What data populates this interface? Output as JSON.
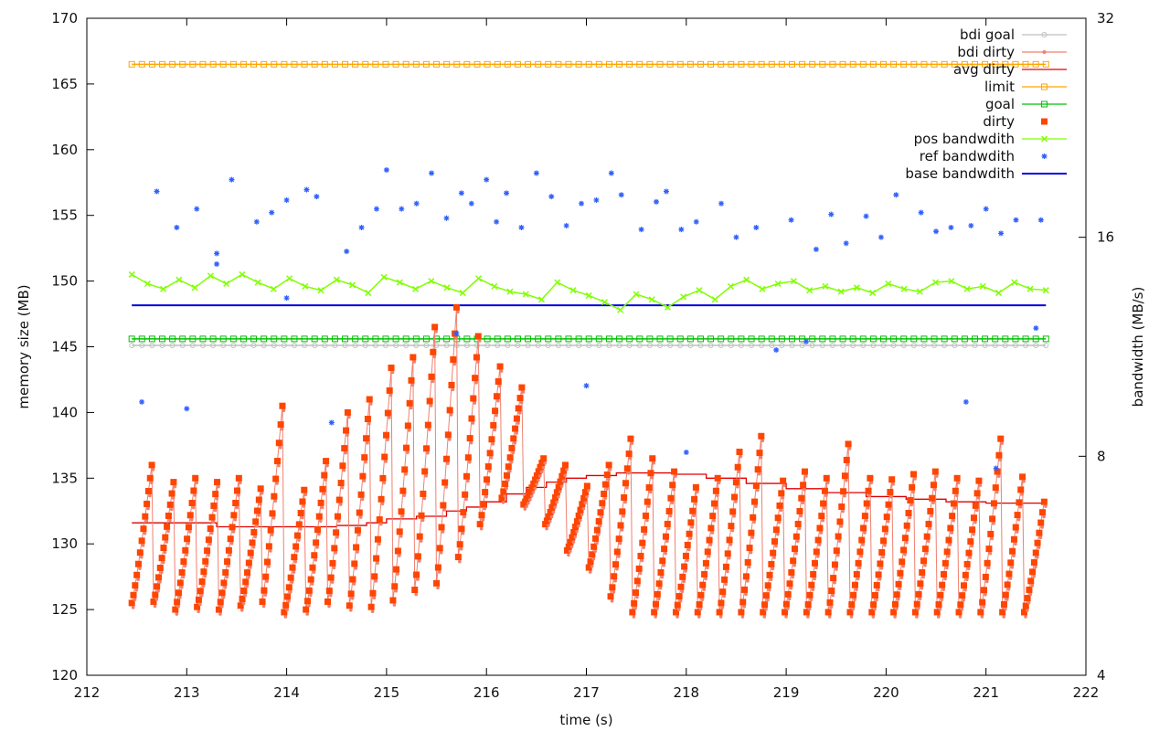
{
  "chart_data": {
    "type": "line",
    "xlabel": "time (s)",
    "ylabel": "memory size (MB)",
    "y2label": "bandwidth (MB/s)",
    "xlim": [
      212,
      222
    ],
    "ylim": [
      120,
      170
    ],
    "y2lim": [
      4,
      32
    ],
    "y2scale": "log2",
    "x_ticks": [
      "212",
      "213",
      "214",
      "215",
      "216",
      "217",
      "218",
      "219",
      "220",
      "221",
      "222"
    ],
    "y_ticks": [
      "120",
      "125",
      "130",
      "135",
      "140",
      "145",
      "150",
      "155",
      "160",
      "165",
      "170"
    ],
    "y2_ticks": [
      "4",
      "8",
      "16",
      "32"
    ],
    "grid": false,
    "legend_position": "top-right",
    "legend": [
      {
        "label": "bdi goal",
        "color": "#c0c0c0",
        "marker": "open-circle-line"
      },
      {
        "label": "bdi dirty",
        "color": "#f08070",
        "marker": "dot-line"
      },
      {
        "label": "avg dirty",
        "color": "#e00000",
        "marker": "line"
      },
      {
        "label": "limit",
        "color": "#ffa500",
        "marker": "open-square-line"
      },
      {
        "label": "goal",
        "color": "#00c000",
        "marker": "open-square-line"
      },
      {
        "label": "dirty",
        "color": "#ff4500",
        "marker": "filled-square"
      },
      {
        "label": "pos bandwdith",
        "color": "#80ff00",
        "marker": "x-line"
      },
      {
        "label": "ref bandwdith",
        "color": "#3060ff",
        "marker": "star"
      },
      {
        "label": "base bandwdith",
        "color": "#0000e0",
        "marker": "line"
      }
    ],
    "series": [
      {
        "name": "limit",
        "axis": "y",
        "x_range": [
          212.45,
          221.6
        ],
        "values": [
          166.5
        ]
      },
      {
        "name": "goal",
        "axis": "y",
        "x_range": [
          212.45,
          221.6
        ],
        "values": [
          145.6
        ]
      },
      {
        "name": "bdi goal",
        "axis": "y",
        "x_range": [
          212.45,
          221.6
        ],
        "values": [
          145.1
        ]
      },
      {
        "name": "base bandwdith",
        "axis": "y2",
        "x_range": [
          212.45,
          221.6
        ],
        "values": [
          12.9
        ]
      },
      {
        "name": "avg dirty",
        "axis": "y",
        "step": true,
        "x": [
          212.45,
          213.2,
          213.3,
          214.0,
          214.5,
          214.8,
          215.0,
          215.3,
          215.6,
          215.8,
          216.0,
          216.2,
          216.4,
          216.6,
          216.8,
          217.0,
          217.3,
          217.6,
          217.9,
          218.2,
          218.6,
          219.0,
          219.4,
          219.8,
          220.2,
          220.6,
          221.0,
          221.6
        ],
        "values": [
          131.6,
          131.6,
          131.3,
          131.3,
          131.4,
          131.6,
          131.9,
          132.1,
          132.5,
          132.8,
          133.2,
          133.8,
          134.3,
          134.7,
          135.0,
          135.2,
          135.4,
          135.4,
          135.3,
          135.0,
          134.6,
          134.2,
          133.9,
          133.6,
          133.4,
          133.2,
          133.1,
          132.9
        ]
      },
      {
        "name": "dirty",
        "axis": "y",
        "sawtooth": true,
        "min": [
          125.5,
          125.6,
          125.0,
          125.2,
          125.0,
          125.3,
          125.6,
          124.8,
          125.0,
          125.6,
          125.3,
          125.2,
          125.7,
          126.5,
          127.0,
          129.0,
          131.5,
          133.5,
          133.0,
          131.5,
          129.5,
          128.2,
          126.0,
          124.8,
          124.8,
          124.8,
          124.8,
          124.8,
          124.8,
          124.8,
          124.8,
          124.8,
          124.8,
          124.8,
          124.8,
          124.8,
          124.8,
          124.8,
          124.8,
          124.8,
          124.8,
          124.8
        ],
        "max": [
          136.0,
          134.7,
          135.0,
          134.7,
          135.0,
          134.2,
          140.5,
          134.1,
          136.3,
          140.0,
          141.0,
          143.4,
          144.2,
          146.5,
          148.0,
          145.8,
          143.5,
          141.9,
          136.5,
          136.0,
          134.4,
          136.0,
          138.0,
          136.5,
          135.5,
          134.3,
          135.0,
          137.0,
          138.2,
          134.8,
          135.5,
          135.0,
          137.6,
          135.0,
          134.9,
          135.3,
          135.5,
          135.0,
          134.8,
          138.0,
          135.1,
          133.2
        ],
        "x_range": [
          212.45,
          221.6
        ]
      },
      {
        "name": "pos bandwdith",
        "axis": "y",
        "zigzag": true,
        "x_range": [
          212.45,
          221.6
        ],
        "values": [
          150.5,
          149.8,
          149.4,
          150.1,
          149.5,
          150.4,
          149.8,
          150.5,
          149.9,
          149.4,
          150.2,
          149.6,
          149.3,
          150.1,
          149.7,
          149.1,
          150.3,
          149.9,
          149.4,
          150.0,
          149.5,
          149.1,
          150.2,
          149.6,
          149.2,
          149.0,
          148.6,
          149.9,
          149.3,
          148.9,
          148.4,
          147.8,
          149.0,
          148.6,
          148.0,
          148.8,
          149.3,
          148.6,
          149.6,
          150.1,
          149.4,
          149.8,
          150.0,
          149.3,
          149.6,
          149.2,
          149.5,
          149.1,
          149.8,
          149.4,
          149.2,
          149.9,
          150.0,
          149.4,
          149.6,
          149.1,
          149.9,
          149.4,
          149.3
        ]
      },
      {
        "name": "ref bandwdith",
        "axis": "y2",
        "scatter": true,
        "points": [
          [
            212.55,
            9.5
          ],
          [
            212.7,
            18.5
          ],
          [
            212.9,
            16.5
          ],
          [
            213.0,
            9.3
          ],
          [
            213.1,
            17.5
          ],
          [
            213.3,
            15.2
          ],
          [
            213.45,
            19.2
          ],
          [
            213.7,
            16.8
          ],
          [
            213.85,
            17.3
          ],
          [
            214.0,
            18.0
          ],
          [
            214.2,
            18.6
          ],
          [
            214.3,
            18.2
          ],
          [
            214.45,
            8.9
          ],
          [
            214.6,
            15.3
          ],
          [
            214.75,
            16.5
          ],
          [
            214.9,
            17.5
          ],
          [
            215.0,
            19.8
          ],
          [
            215.15,
            17.5
          ],
          [
            215.3,
            17.8
          ],
          [
            215.45,
            19.6
          ],
          [
            215.6,
            17.0
          ],
          [
            215.75,
            18.4
          ],
          [
            215.85,
            17.8
          ],
          [
            216.0,
            19.2
          ],
          [
            216.1,
            16.8
          ],
          [
            216.2,
            18.4
          ],
          [
            216.35,
            16.5
          ],
          [
            216.5,
            19.6
          ],
          [
            216.65,
            18.2
          ],
          [
            216.8,
            16.6
          ],
          [
            216.95,
            17.8
          ],
          [
            217.1,
            18.0
          ],
          [
            217.25,
            19.6
          ],
          [
            217.35,
            18.3
          ],
          [
            217.55,
            16.4
          ],
          [
            217.7,
            17.9
          ],
          [
            217.8,
            18.5
          ],
          [
            217.95,
            16.4
          ],
          [
            218.1,
            16.8
          ],
          [
            218.35,
            17.8
          ],
          [
            218.5,
            16.0
          ],
          [
            218.7,
            16.5
          ],
          [
            218.9,
            11.2
          ],
          [
            219.05,
            16.9
          ],
          [
            219.3,
            15.4
          ],
          [
            219.45,
            17.2
          ],
          [
            219.6,
            15.7
          ],
          [
            219.8,
            17.1
          ],
          [
            219.95,
            16.0
          ],
          [
            220.1,
            18.3
          ],
          [
            220.35,
            17.3
          ],
          [
            220.5,
            16.3
          ],
          [
            220.65,
            16.5
          ],
          [
            220.85,
            16.6
          ],
          [
            221.0,
            17.5
          ],
          [
            221.15,
            16.2
          ],
          [
            221.3,
            16.9
          ],
          [
            221.5,
            12.0
          ],
          [
            221.55,
            16.9
          ],
          [
            213.3,
            14.7
          ],
          [
            214.0,
            13.2
          ],
          [
            215.7,
            11.8
          ],
          [
            217.0,
            10.0
          ],
          [
            218.0,
            8.1
          ],
          [
            219.2,
            11.5
          ],
          [
            220.8,
            9.5
          ],
          [
            221.1,
            7.7
          ]
        ]
      }
    ]
  }
}
